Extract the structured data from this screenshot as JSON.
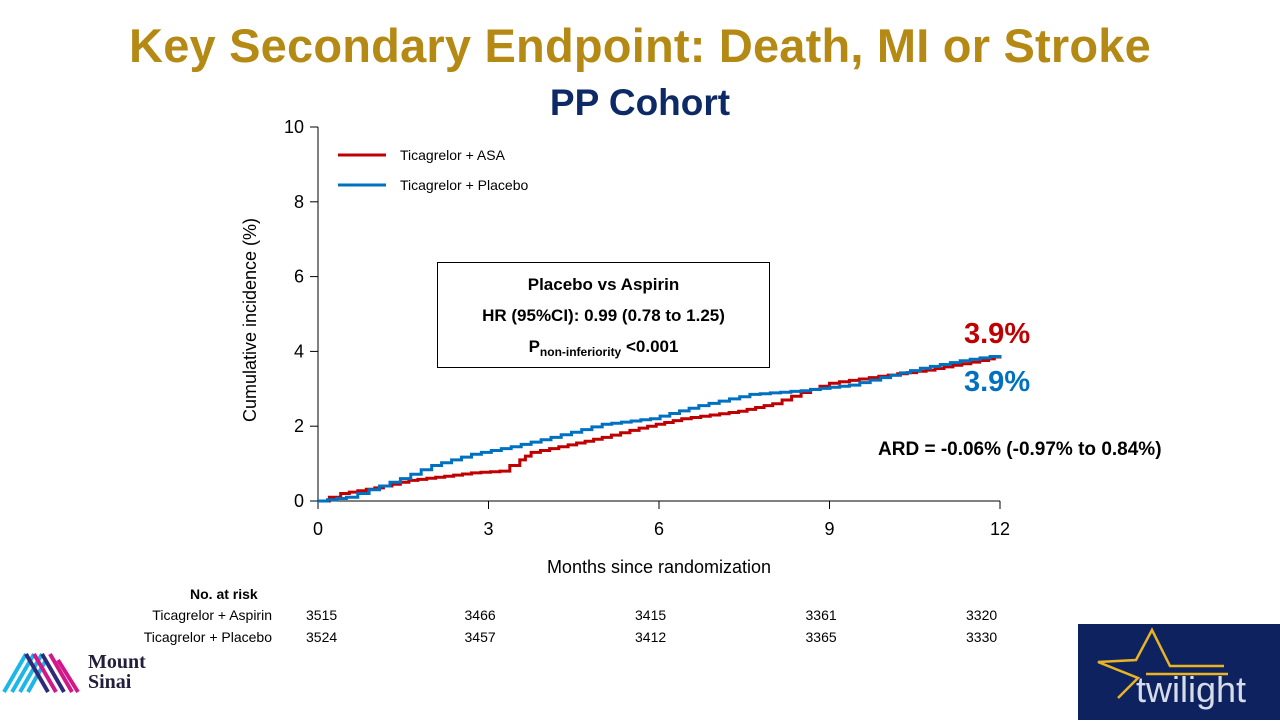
{
  "slide": {
    "title": "Key Secondary Endpoint: Death, MI or Stroke",
    "subtitle": "PP Cohort"
  },
  "stats_box": {
    "heading": "Placebo vs Aspirin",
    "hr": "HR (95%CI):  0.99 (0.78 to 1.25)",
    "p_main": "P",
    "p_sub": "non-inferiority",
    "p_value": " <0.001"
  },
  "end_labels": {
    "asa": "3.9%",
    "placebo": "3.9%"
  },
  "ard": "ARD = -0.06%  (-0.97%  to 0.84%)",
  "colors": {
    "title": "#b48a14",
    "subtitle": "#0d2a66",
    "asa": "#c00000",
    "placebo": "#0070c0"
  },
  "risk_table": {
    "header": "No. at risk",
    "rows": [
      {
        "label": "Ticagrelor  + Aspirin",
        "values": [
          "3515",
          "3466",
          "3415",
          "3361",
          "3320"
        ]
      },
      {
        "label": "Ticagrelor  + Placebo",
        "values": [
          "3524",
          "3457",
          "3412",
          "3365",
          "3330"
        ]
      }
    ]
  },
  "logos": {
    "left": {
      "line1": "Mount",
      "line2": "Sinai"
    },
    "right": {
      "text": "twilight"
    }
  },
  "chart_data": {
    "type": "line",
    "title": "",
    "xlabel": "Months since randomization",
    "ylabel": "Cumulative incidence (%)",
    "xlim": [
      0,
      12
    ],
    "ylim": [
      0,
      10
    ],
    "xticks": [
      0,
      3,
      6,
      9,
      12
    ],
    "yticks": [
      0,
      2,
      4,
      6,
      8,
      10
    ],
    "grid": false,
    "legend_position": "top-left",
    "step": true,
    "series": [
      {
        "name": "Ticagrelor  + ASA",
        "color": "#c00000",
        "x": [
          0,
          0.4,
          1.0,
          1.6,
          2.7,
          3.2,
          3.55,
          3.75,
          4.4,
          5.0,
          5.65,
          6.4,
          7.4,
          8.0,
          8.5,
          9.0,
          9.7,
          10.7,
          11.8,
          12.0
        ],
        "y": [
          0,
          0.2,
          0.35,
          0.55,
          0.75,
          0.8,
          1.1,
          1.3,
          1.5,
          1.7,
          1.95,
          2.2,
          2.4,
          2.6,
          2.9,
          3.15,
          3.3,
          3.5,
          3.8,
          3.9
        ]
      },
      {
        "name": "Ticagrelor  + Placebo",
        "color": "#0070c0",
        "x": [
          0,
          0.5,
          0.9,
          1.45,
          2.0,
          2.7,
          3.4,
          4.1,
          5.0,
          5.85,
          6.7,
          7.6,
          8.5,
          9.35,
          9.9,
          10.6,
          11.3,
          12.0
        ],
        "y": [
          0,
          0.1,
          0.3,
          0.6,
          0.95,
          1.25,
          1.45,
          1.7,
          2.05,
          2.2,
          2.55,
          2.85,
          2.95,
          3.1,
          3.3,
          3.55,
          3.75,
          3.9
        ]
      }
    ]
  }
}
